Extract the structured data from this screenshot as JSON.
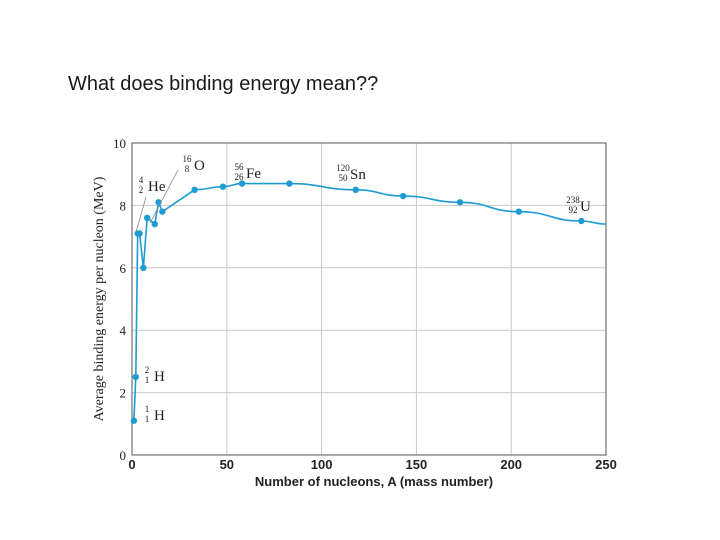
{
  "slide": {
    "title": "What does binding energy mean??"
  },
  "chart_data": {
    "type": "line",
    "title": "",
    "xlabel": "Number of nucleons, A (mass number)",
    "ylabel": "Average binding energy per nucleon (MeV)",
    "xlim": [
      0,
      250
    ],
    "ylim": [
      0,
      10
    ],
    "x_ticks": [
      0,
      50,
      100,
      150,
      200,
      250
    ],
    "y_ticks": [
      0,
      2,
      4,
      6,
      8,
      10
    ],
    "grid": true,
    "series": [
      {
        "name": "binding energy per nucleon",
        "color": "#1e9bd3",
        "points": [
          {
            "x": 1,
            "y": 1.1
          },
          {
            "x": 2,
            "y": 2.5
          },
          {
            "x": 3,
            "y": 7.1
          },
          {
            "x": 4,
            "y": 7.1
          },
          {
            "x": 6,
            "y": 6.0
          },
          {
            "x": 8,
            "y": 7.6
          },
          {
            "x": 12,
            "y": 7.4
          },
          {
            "x": 14,
            "y": 8.1
          },
          {
            "x": 16,
            "y": 7.8
          },
          {
            "x": 33,
            "y": 8.5
          },
          {
            "x": 48,
            "y": 8.6
          },
          {
            "x": 58,
            "y": 8.7
          },
          {
            "x": 83,
            "y": 8.7
          },
          {
            "x": 118,
            "y": 8.5
          },
          {
            "x": 143,
            "y": 8.3
          },
          {
            "x": 173,
            "y": 8.1
          },
          {
            "x": 204,
            "y": 7.8
          },
          {
            "x": 237,
            "y": 7.5
          },
          {
            "x": 250,
            "y": 7.4
          }
        ],
        "markers_exclude_last": true
      }
    ],
    "annotations": [
      {
        "name": "hydrogen-1",
        "mass": "1",
        "atomic": "1",
        "symbol": "H",
        "x": 1,
        "y": 1.1
      },
      {
        "name": "hydrogen-2",
        "mass": "2",
        "atomic": "1",
        "symbol": "H",
        "x": 2,
        "y": 2.5
      },
      {
        "name": "helium-4",
        "mass": "4",
        "atomic": "2",
        "symbol": "He",
        "x": 4,
        "y": 7.1
      },
      {
        "name": "oxygen-16",
        "mass": "16",
        "atomic": "8",
        "symbol": "O",
        "x": 16,
        "y": 7.8
      },
      {
        "name": "iron-56",
        "mass": "56",
        "atomic": "26",
        "symbol": "Fe",
        "x": 58,
        "y": 8.7
      },
      {
        "name": "tin-120",
        "mass": "120",
        "atomic": "50",
        "symbol": "Sn",
        "x": 118,
        "y": 8.5
      },
      {
        "name": "uranium-238",
        "mass": "238",
        "atomic": "92",
        "symbol": "U",
        "x": 237,
        "y": 7.5
      }
    ]
  }
}
